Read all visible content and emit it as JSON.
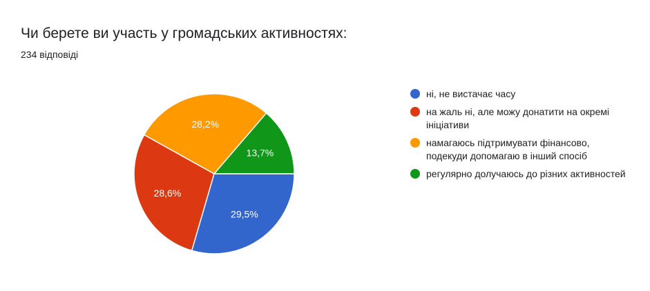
{
  "header": {
    "title": "Чи берете ви участь у громадських активностях:",
    "response_count": "234 відповіді"
  },
  "chart_data": {
    "type": "pie",
    "legend_position": "right",
    "slices": [
      {
        "label": "ні, не вистачає часу",
        "value": 29.5,
        "display": "29,5%",
        "color": "#3366cc"
      },
      {
        "label": "на жаль ні, але можу донатити на окремі ініціативи",
        "value": 28.6,
        "display": "28,6%",
        "color": "#dc3912"
      },
      {
        "label": "намагаюсь підтримувати фінансово, подекуди допомагаю в інший спосіб",
        "value": 28.2,
        "display": "28,2%",
        "color": "#ff9900"
      },
      {
        "label": "регулярно долучаюсь до різних активностей",
        "value": 13.7,
        "display": "13,7%",
        "color": "#109618"
      }
    ]
  }
}
